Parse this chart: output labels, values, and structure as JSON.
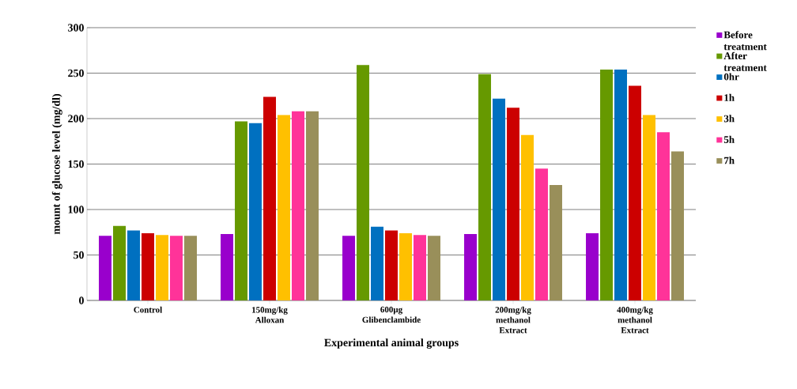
{
  "chart_data": {
    "type": "bar",
    "xlabel": "Experimental animal groups",
    "ylabel": "mount of glucose level (mg/dl)",
    "categories": [
      "Control",
      "150mg/kg Alloxan",
      "600µg Glibenclambide",
      "200mg/kg methanol Extract",
      "400mg/kg methanol Extract"
    ],
    "series": [
      {
        "name": "Before treatment",
        "color": "#9900cc",
        "values": [
          71,
          73,
          71,
          73,
          74
        ]
      },
      {
        "name": "After treatment",
        "color": "#669900",
        "values": [
          82,
          197,
          259,
          249,
          254
        ]
      },
      {
        "name": "0hr",
        "color": "#0070c0",
        "values": [
          77,
          195,
          81,
          222,
          254
        ]
      },
      {
        "name": "1h",
        "color": "#cc0000",
        "values": [
          74,
          224,
          77,
          212,
          236
        ]
      },
      {
        "name": "3h",
        "color": "#ffc000",
        "values": [
          72,
          204,
          74,
          182,
          204
        ]
      },
      {
        "name": "5h",
        "color": "#ff3399",
        "values": [
          71,
          208,
          72,
          145,
          185
        ]
      },
      {
        "name": "7h",
        "color": "#998f5a",
        "values": [
          71,
          208,
          71,
          127,
          164
        ]
      }
    ],
    "ylim": [
      0,
      300
    ],
    "yticks": [
      0,
      50,
      100,
      150,
      200,
      250,
      300
    ],
    "grid": "y",
    "legend": "right"
  }
}
